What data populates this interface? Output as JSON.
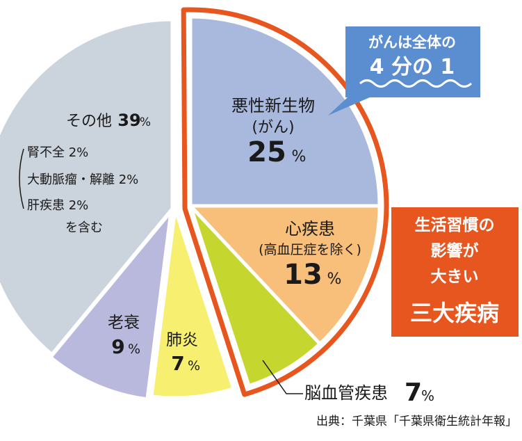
{
  "chart_data": {
    "type": "pie",
    "title": "",
    "categories": [
      "悪性新生物(がん)",
      "心疾患(高血圧症を除く)",
      "脳血管疾患",
      "肺炎",
      "老衰",
      "その他"
    ],
    "values": [
      25,
      13,
      7,
      7,
      9,
      39
    ],
    "unit": "%",
    "colors": [
      "#a9b9dd",
      "#f7bf7a",
      "#c5d62f",
      "#f6ef6f",
      "#b9b9dd",
      "#cbd3dc"
    ],
    "slice_labels": [
      {
        "name": "悪性新生物",
        "sub": "(がん)",
        "value": "25",
        "pct": "%"
      },
      {
        "name": "心疾患",
        "sub": "(高血圧症を除く)",
        "value": "13",
        "pct": "%"
      },
      {
        "name": "脳血管疾患",
        "sub": "",
        "value": "7",
        "pct": "%"
      },
      {
        "name": "肺炎",
        "sub": "",
        "value": "7",
        "pct": "%"
      },
      {
        "name": "老衰",
        "sub": "",
        "value": "9",
        "pct": "%"
      },
      {
        "name": "その他",
        "sub": "",
        "value": "39",
        "pct": "%"
      }
    ],
    "other_breakdown": [
      "腎不全 2%",
      "大動脈瘤・解離 2%",
      "肝疾患 2%",
      "を含む"
    ],
    "highlight_color": "#e8561f"
  },
  "callouts": {
    "cancer_quarter": [
      "がんは全体の",
      "4 分の 1"
    ],
    "cancer_quarter_color": "#5b8ed0",
    "lifestyle": [
      "生活習慣の",
      "影響が",
      "大きい",
      "三大疾病"
    ]
  },
  "source": "出典：千葉県「千葉県衛生統計年報」"
}
